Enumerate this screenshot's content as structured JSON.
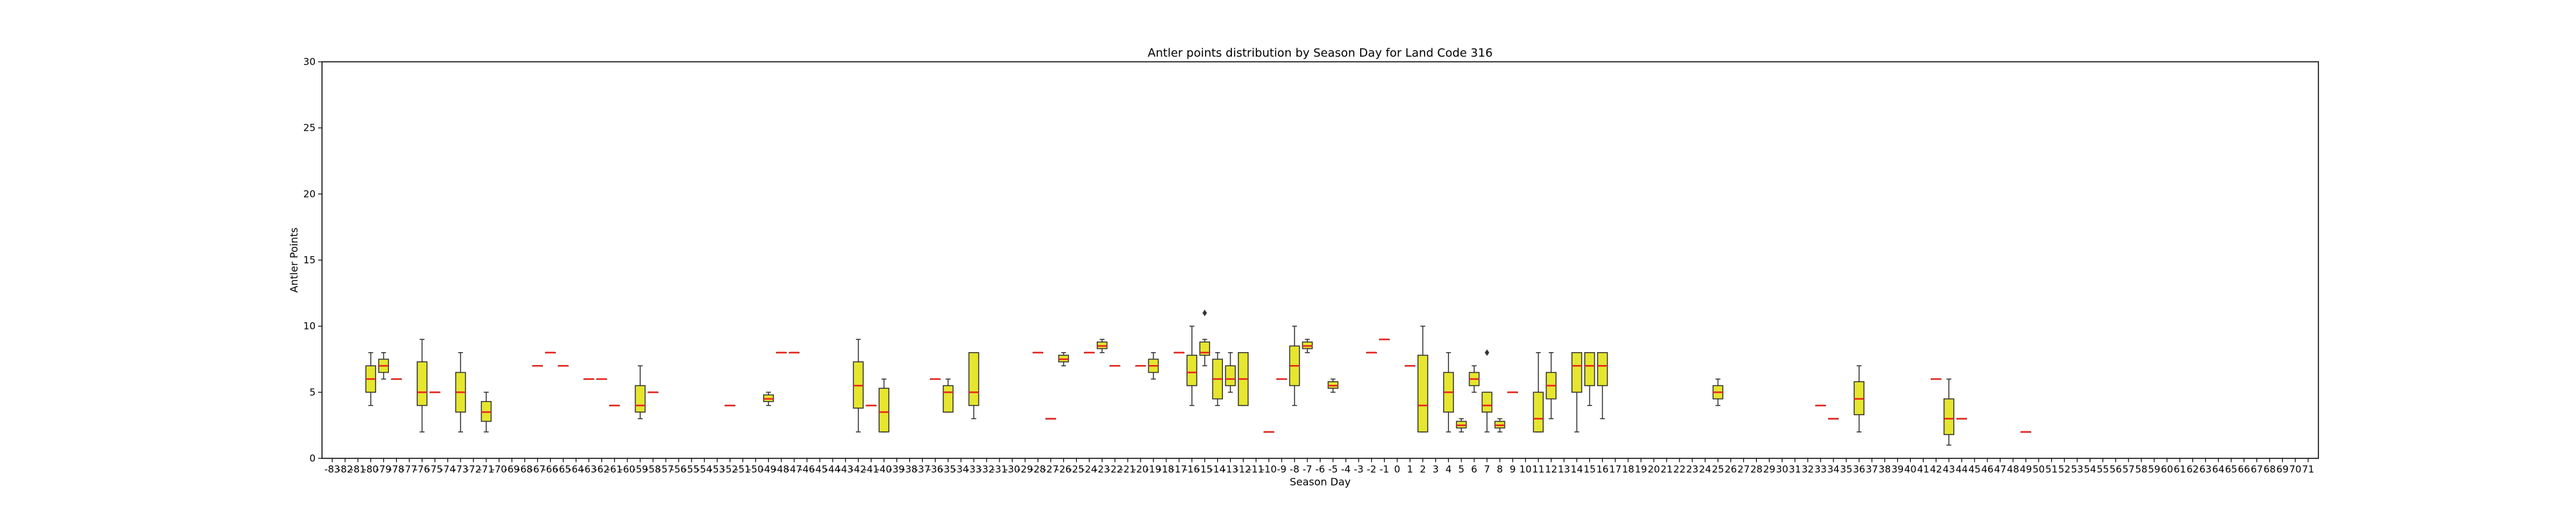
{
  "chart_data": {
    "type": "box",
    "title": "Antler points distribution by Season Day for Land Code 316",
    "xlabel": "Season Day",
    "ylabel": "Antler Points",
    "ylim": [
      0,
      30
    ],
    "yticks": [
      0,
      5,
      10,
      15,
      20,
      25,
      30
    ],
    "categories": [
      "-83",
      "-82",
      "-81",
      "-80",
      "-79",
      "-78",
      "-77",
      "-76",
      "-75",
      "-74",
      "-73",
      "-72",
      "-71",
      "-70",
      "-69",
      "-68",
      "-67",
      "-66",
      "-65",
      "-64",
      "-63",
      "-62",
      "-61",
      "-60",
      "-59",
      "-58",
      "-57",
      "-56",
      "-55",
      "-54",
      "-53",
      "-52",
      "-51",
      "-50",
      "-49",
      "-48",
      "-47",
      "-46",
      "-45",
      "-44",
      "-43",
      "-42",
      "-41",
      "-40",
      "-39",
      "-38",
      "-37",
      "-36",
      "-35",
      "-34",
      "-33",
      "-32",
      "-31",
      "-30",
      "-29",
      "-28",
      "-27",
      "-26",
      "-25",
      "-24",
      "-23",
      "-22",
      "-21",
      "-20",
      "-19",
      "-18",
      "-17",
      "-16",
      "-15",
      "-14",
      "-13",
      "-12",
      "-11",
      "-10",
      "-9",
      "-8",
      "-7",
      "-6",
      "-5",
      "-4",
      "-3",
      "-2",
      "-1",
      "0",
      "1",
      "2",
      "3",
      "4",
      "5",
      "6",
      "7",
      "8",
      "9",
      "10",
      "11",
      "12",
      "13",
      "14",
      "15",
      "16",
      "17",
      "18",
      "19",
      "20",
      "21",
      "22",
      "23",
      "24",
      "25",
      "26",
      "27",
      "28",
      "29",
      "30",
      "31",
      "32",
      "33",
      "34",
      "35",
      "36",
      "37",
      "38",
      "39",
      "40",
      "41",
      "42",
      "43",
      "44",
      "45",
      "46",
      "47",
      "48",
      "49",
      "50",
      "51",
      "52",
      "53",
      "54",
      "55",
      "56",
      "57",
      "58",
      "59",
      "60",
      "61",
      "62",
      "63",
      "64",
      "65",
      "66",
      "67",
      "68",
      "69",
      "70",
      "71"
    ],
    "boxes": [
      {
        "x": "-80",
        "q1": 5,
        "median": 6,
        "q3": 7,
        "whislo": 4,
        "whishi": 8,
        "fliers": []
      },
      {
        "x": "-79",
        "q1": 6.5,
        "median": 7,
        "q3": 7.5,
        "whislo": 6,
        "whishi": 8,
        "fliers": []
      },
      {
        "x": "-78",
        "q1": 6,
        "median": 6,
        "q3": 6,
        "whislo": 6,
        "whishi": 6,
        "fliers": []
      },
      {
        "x": "-76",
        "q1": 4,
        "median": 5,
        "q3": 7.3,
        "whislo": 2,
        "whishi": 9,
        "fliers": []
      },
      {
        "x": "-75",
        "q1": 5,
        "median": 5,
        "q3": 5,
        "whislo": 5,
        "whishi": 5,
        "fliers": []
      },
      {
        "x": "-73",
        "q1": 3.5,
        "median": 5,
        "q3": 6.5,
        "whislo": 2,
        "whishi": 8,
        "fliers": []
      },
      {
        "x": "-71",
        "q1": 2.8,
        "median": 3.5,
        "q3": 4.3,
        "whislo": 2,
        "whishi": 5,
        "fliers": []
      },
      {
        "x": "-67",
        "q1": 7,
        "median": 7,
        "q3": 7,
        "whislo": 7,
        "whishi": 7,
        "fliers": []
      },
      {
        "x": "-66",
        "q1": 8,
        "median": 8,
        "q3": 8,
        "whislo": 8,
        "whishi": 8,
        "fliers": []
      },
      {
        "x": "-65",
        "q1": 7,
        "median": 7,
        "q3": 7,
        "whislo": 7,
        "whishi": 7,
        "fliers": []
      },
      {
        "x": "-63",
        "q1": 6,
        "median": 6,
        "q3": 6,
        "whislo": 6,
        "whishi": 6,
        "fliers": []
      },
      {
        "x": "-62",
        "q1": 6,
        "median": 6,
        "q3": 6,
        "whislo": 6,
        "whishi": 6,
        "fliers": []
      },
      {
        "x": "-61",
        "q1": 4,
        "median": 4,
        "q3": 4,
        "whislo": 4,
        "whishi": 4,
        "fliers": []
      },
      {
        "x": "-59",
        "q1": 3.5,
        "median": 4,
        "q3": 5.5,
        "whislo": 3,
        "whishi": 7,
        "fliers": []
      },
      {
        "x": "-58",
        "q1": 5,
        "median": 5,
        "q3": 5,
        "whislo": 5,
        "whishi": 5,
        "fliers": []
      },
      {
        "x": "-52",
        "q1": 4,
        "median": 4,
        "q3": 4,
        "whislo": 4,
        "whishi": 4,
        "fliers": []
      },
      {
        "x": "-49",
        "q1": 4.3,
        "median": 4.5,
        "q3": 4.8,
        "whislo": 4,
        "whishi": 5,
        "fliers": []
      },
      {
        "x": "-48",
        "q1": 8,
        "median": 8,
        "q3": 8,
        "whislo": 8,
        "whishi": 8,
        "fliers": []
      },
      {
        "x": "-47",
        "q1": 8,
        "median": 8,
        "q3": 8,
        "whislo": 8,
        "whishi": 8,
        "fliers": []
      },
      {
        "x": "-42",
        "q1": 3.8,
        "median": 5.5,
        "q3": 7.3,
        "whislo": 2,
        "whishi": 9,
        "fliers": []
      },
      {
        "x": "-41",
        "q1": 4,
        "median": 4,
        "q3": 4,
        "whislo": 4,
        "whishi": 4,
        "fliers": []
      },
      {
        "x": "-40",
        "q1": 2,
        "median": 3.5,
        "q3": 5.3,
        "whislo": 2,
        "whishi": 6,
        "fliers": []
      },
      {
        "x": "-36",
        "q1": 6,
        "median": 6,
        "q3": 6,
        "whislo": 6,
        "whishi": 6,
        "fliers": []
      },
      {
        "x": "-35",
        "q1": 3.5,
        "median": 5,
        "q3": 5.5,
        "whislo": 3.5,
        "whishi": 6,
        "fliers": []
      },
      {
        "x": "-33",
        "q1": 4,
        "median": 5,
        "q3": 8,
        "whislo": 3,
        "whishi": 8,
        "fliers": []
      },
      {
        "x": "-28",
        "q1": 8,
        "median": 8,
        "q3": 8,
        "whislo": 8,
        "whishi": 8,
        "fliers": []
      },
      {
        "x": "-27",
        "q1": 3,
        "median": 3,
        "q3": 3,
        "whislo": 3,
        "whishi": 3,
        "fliers": []
      },
      {
        "x": "-26",
        "q1": 7.3,
        "median": 7.5,
        "q3": 7.8,
        "whislo": 7,
        "whishi": 8,
        "fliers": []
      },
      {
        "x": "-24",
        "q1": 8,
        "median": 8,
        "q3": 8,
        "whislo": 8,
        "whishi": 8,
        "fliers": []
      },
      {
        "x": "-23",
        "q1": 8.3,
        "median": 8.5,
        "q3": 8.8,
        "whislo": 8,
        "whishi": 9,
        "fliers": []
      },
      {
        "x": "-22",
        "q1": 7,
        "median": 7,
        "q3": 7,
        "whislo": 7,
        "whishi": 7,
        "fliers": []
      },
      {
        "x": "-20",
        "q1": 7,
        "median": 7,
        "q3": 7,
        "whislo": 7,
        "whishi": 7,
        "fliers": []
      },
      {
        "x": "-19",
        "q1": 6.5,
        "median": 7,
        "q3": 7.5,
        "whislo": 6,
        "whishi": 8,
        "fliers": []
      },
      {
        "x": "-17",
        "q1": 8,
        "median": 8,
        "q3": 8,
        "whislo": 8,
        "whishi": 8,
        "fliers": []
      },
      {
        "x": "-16",
        "q1": 5.5,
        "median": 6.5,
        "q3": 7.8,
        "whislo": 4,
        "whishi": 10,
        "fliers": []
      },
      {
        "x": "-15",
        "q1": 7.8,
        "median": 8,
        "q3": 8.8,
        "whislo": 7,
        "whishi": 9,
        "fliers": [
          11
        ]
      },
      {
        "x": "-14",
        "q1": 4.5,
        "median": 6,
        "q3": 7.5,
        "whislo": 4,
        "whishi": 8,
        "fliers": []
      },
      {
        "x": "-13",
        "q1": 5.5,
        "median": 6,
        "q3": 7,
        "whislo": 5,
        "whishi": 8,
        "fliers": []
      },
      {
        "x": "-12",
        "q1": 4,
        "median": 6,
        "q3": 8,
        "whislo": 4,
        "whishi": 8,
        "fliers": []
      },
      {
        "x": "-10",
        "q1": 2,
        "median": 2,
        "q3": 2,
        "whislo": 2,
        "whishi": 2,
        "fliers": []
      },
      {
        "x": "-9",
        "q1": 6,
        "median": 6,
        "q3": 6,
        "whislo": 6,
        "whishi": 6,
        "fliers": []
      },
      {
        "x": "-8",
        "q1": 5.5,
        "median": 7,
        "q3": 8.5,
        "whislo": 4,
        "whishi": 10,
        "fliers": []
      },
      {
        "x": "-7",
        "q1": 8.3,
        "median": 8.5,
        "q3": 8.8,
        "whislo": 8,
        "whishi": 9,
        "fliers": []
      },
      {
        "x": "-5",
        "q1": 5.3,
        "median": 5.5,
        "q3": 5.8,
        "whislo": 5,
        "whishi": 6,
        "fliers": []
      },
      {
        "x": "-2",
        "q1": 8,
        "median": 8,
        "q3": 8,
        "whislo": 8,
        "whishi": 8,
        "fliers": []
      },
      {
        "x": "-1",
        "q1": 9,
        "median": 9,
        "q3": 9,
        "whislo": 9,
        "whishi": 9,
        "fliers": []
      },
      {
        "x": "1",
        "q1": 7,
        "median": 7,
        "q3": 7,
        "whislo": 7,
        "whishi": 7,
        "fliers": []
      },
      {
        "x": "2",
        "q1": 2,
        "median": 4,
        "q3": 7.8,
        "whislo": 2,
        "whishi": 10,
        "fliers": []
      },
      {
        "x": "4",
        "q1": 3.5,
        "median": 5,
        "q3": 6.5,
        "whislo": 2,
        "whishi": 8,
        "fliers": []
      },
      {
        "x": "5",
        "q1": 2.3,
        "median": 2.5,
        "q3": 2.8,
        "whislo": 2,
        "whishi": 3,
        "fliers": []
      },
      {
        "x": "6",
        "q1": 5.5,
        "median": 6,
        "q3": 6.5,
        "whislo": 5,
        "whishi": 7,
        "fliers": []
      },
      {
        "x": "7",
        "q1": 3.5,
        "median": 4,
        "q3": 5,
        "whislo": 2,
        "whishi": 5,
        "fliers": [
          8
        ]
      },
      {
        "x": "8",
        "q1": 2.3,
        "median": 2.5,
        "q3": 2.8,
        "whislo": 2,
        "whishi": 3,
        "fliers": []
      },
      {
        "x": "9",
        "q1": 5,
        "median": 5,
        "q3": 5,
        "whislo": 5,
        "whishi": 5,
        "fliers": []
      },
      {
        "x": "11",
        "q1": 2,
        "median": 3,
        "q3": 5,
        "whislo": 2,
        "whishi": 8,
        "fliers": []
      },
      {
        "x": "12",
        "q1": 4.5,
        "median": 5.5,
        "q3": 6.5,
        "whislo": 3,
        "whishi": 8,
        "fliers": []
      },
      {
        "x": "14",
        "q1": 5,
        "median": 7,
        "q3": 8,
        "whislo": 2,
        "whishi": 8,
        "fliers": []
      },
      {
        "x": "15",
        "q1": 5.5,
        "median": 7,
        "q3": 8,
        "whislo": 4,
        "whishi": 8,
        "fliers": []
      },
      {
        "x": "16",
        "q1": 5.5,
        "median": 7,
        "q3": 8,
        "whislo": 3,
        "whishi": 8,
        "fliers": []
      },
      {
        "x": "25",
        "q1": 4.5,
        "median": 5,
        "q3": 5.5,
        "whislo": 4,
        "whishi": 6,
        "fliers": []
      },
      {
        "x": "33",
        "q1": 4,
        "median": 4,
        "q3": 4,
        "whislo": 4,
        "whishi": 4,
        "fliers": []
      },
      {
        "x": "34",
        "q1": 3,
        "median": 3,
        "q3": 3,
        "whislo": 3,
        "whishi": 3,
        "fliers": []
      },
      {
        "x": "36",
        "q1": 3.3,
        "median": 4.5,
        "q3": 5.8,
        "whislo": 2,
        "whishi": 7,
        "fliers": []
      },
      {
        "x": "42",
        "q1": 6,
        "median": 6,
        "q3": 6,
        "whislo": 6,
        "whishi": 6,
        "fliers": []
      },
      {
        "x": "43",
        "q1": 1.8,
        "median": 3,
        "q3": 4.5,
        "whislo": 1,
        "whishi": 6,
        "fliers": []
      },
      {
        "x": "44",
        "q1": 3,
        "median": 3,
        "q3": 3,
        "whislo": 3,
        "whishi": 3,
        "fliers": []
      },
      {
        "x": "49",
        "q1": 2,
        "median": 2,
        "q3": 2,
        "whislo": 2,
        "whishi": 2,
        "fliers": []
      }
    ],
    "colors": {
      "box_fill": "#e6e62e",
      "box_edge": "#333333",
      "median": "#e8251f",
      "whisker": "#333333",
      "axis": "#000000"
    }
  }
}
